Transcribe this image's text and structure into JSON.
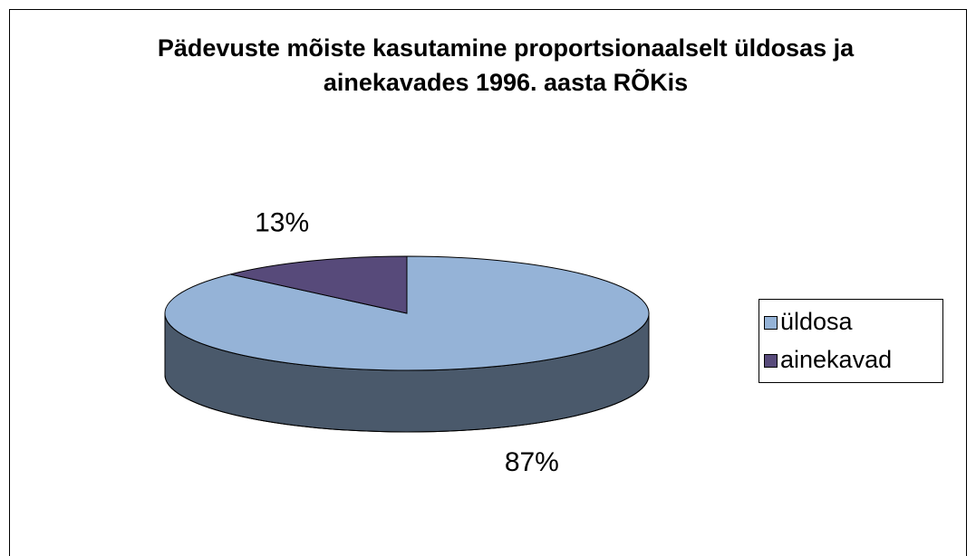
{
  "chart_data": {
    "type": "pie",
    "title": "Pädevuste mõiste kasutamine proportsionaalselt üldosas ja ainekavades 1996. aasta RÕKis",
    "categories": [
      "üldosa",
      "ainekavad"
    ],
    "values": [
      87,
      13
    ],
    "value_labels": [
      "87%",
      "13%"
    ],
    "colors": [
      "#95b3d7",
      "#574a7a"
    ],
    "legend": "right"
  }
}
